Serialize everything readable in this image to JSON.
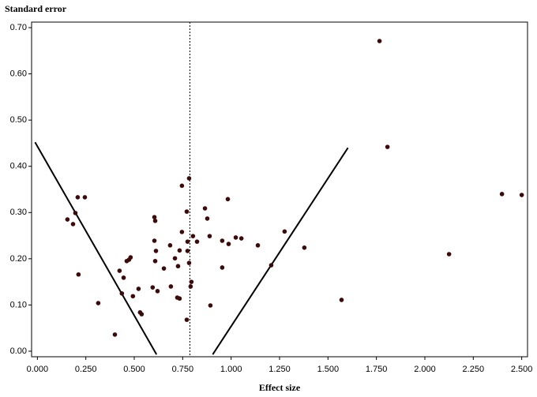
{
  "chart_data": {
    "type": "scatter",
    "x_label": "Effect size",
    "y_label": "Standard error",
    "color": "#3d0a0a",
    "xlim": [
      -0.03,
      2.53
    ],
    "ylim": [
      -0.012,
      0.712
    ],
    "xticks": [
      {
        "value": 0,
        "label": "0.000"
      },
      {
        "value": 0.25,
        "label": "0.250"
      },
      {
        "value": 0.5,
        "label": "0.500"
      },
      {
        "value": 0.75,
        "label": "0.750"
      },
      {
        "value": 1,
        "label": "1.000"
      },
      {
        "value": 1.25,
        "label": "1.250"
      },
      {
        "value": 1.5,
        "label": "1.500"
      },
      {
        "value": 1.75,
        "label": "1.750"
      },
      {
        "value": 2,
        "label": "2.000"
      },
      {
        "value": 2.25,
        "label": "2.250"
      },
      {
        "value": 2.5,
        "label": "2.500"
      }
    ],
    "yticks": [
      {
        "value": 0,
        "label": "0.00"
      },
      {
        "value": 0.1,
        "label": "0.10"
      },
      {
        "value": 0.2,
        "label": "0.20"
      },
      {
        "value": 0.3,
        "label": "0.30"
      },
      {
        "value": 0.4,
        "label": "0.40"
      },
      {
        "value": 0.5,
        "label": "0.50"
      },
      {
        "value": 0.6,
        "label": "0.60"
      },
      {
        "value": 0.7,
        "label": "0.70"
      }
    ],
    "x": [
      1.766,
      1.807,
      2.398,
      2.5,
      2.125,
      1.57,
      1.378,
      1.276,
      1.207,
      1.138,
      0.983,
      0.954,
      0.987,
      1.024,
      1.053,
      0.954,
      0.865,
      0.877,
      0.889,
      0.893,
      0.824,
      0.803,
      0.783,
      0.771,
      0.775,
      0.775,
      0.783,
      0.795,
      0.791,
      0.771,
      0.746,
      0.746,
      0.734,
      0.726,
      0.71,
      0.722,
      0.734,
      0.685,
      0.689,
      0.653,
      0.604,
      0.608,
      0.604,
      0.612,
      0.608,
      0.62,
      0.595,
      0.481,
      0.473,
      0.461,
      0.424,
      0.445,
      0.522,
      0.493,
      0.53,
      0.538,
      0.436,
      0.314,
      0.4,
      0.208,
      0.245,
      0.196,
      0.155,
      0.184,
      0.212
    ],
    "values": [
      0.671,
      0.442,
      0.34,
      0.338,
      0.21,
      0.111,
      0.224,
      0.259,
      0.186,
      0.229,
      0.329,
      0.239,
      0.232,
      0.246,
      0.244,
      0.181,
      0.309,
      0.287,
      0.249,
      0.099,
      0.237,
      0.249,
      0.374,
      0.302,
      0.237,
      0.217,
      0.191,
      0.15,
      0.14,
      0.068,
      0.358,
      0.258,
      0.218,
      0.184,
      0.201,
      0.116,
      0.114,
      0.229,
      0.14,
      0.179,
      0.29,
      0.282,
      0.239,
      0.217,
      0.195,
      0.13,
      0.138,
      0.203,
      0.198,
      0.195,
      0.174,
      0.159,
      0.135,
      0.119,
      0.084,
      0.08,
      0.125,
      0.104,
      0.036,
      0.333,
      0.333,
      0.299,
      0.285,
      0.275,
      0.166
    ],
    "vline": 0.787,
    "lines": [
      {
        "x": [
          -0.012,
          0.615
        ],
        "y": [
          0.452,
          -0.007
        ]
      },
      {
        "x": [
          0.905,
          1.603
        ],
        "y": [
          -0.007,
          0.44
        ]
      }
    ]
  }
}
